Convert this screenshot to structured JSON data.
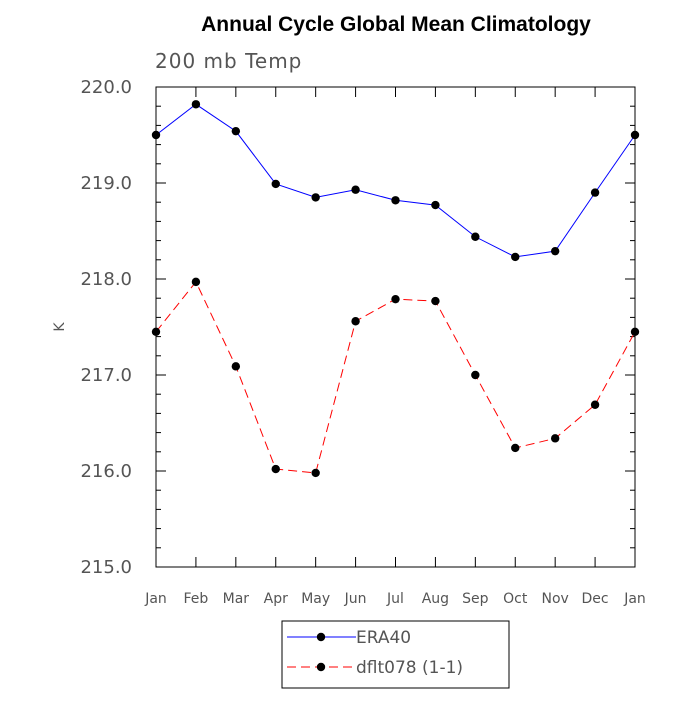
{
  "chart_data": {
    "type": "line",
    "title": "Annual Cycle Global Mean Climatology",
    "subtitle": "200 mb Temp",
    "xlabel": "",
    "ylabel": "K",
    "categories": [
      "Jan",
      "Feb",
      "Mar",
      "Apr",
      "May",
      "Jun",
      "Jul",
      "Aug",
      "Sep",
      "Oct",
      "Nov",
      "Dec",
      "Jan"
    ],
    "ylim": [
      215.0,
      220.0
    ],
    "yticks": [
      "215.0",
      "216.0",
      "217.0",
      "218.0",
      "219.0",
      "220.0"
    ],
    "grid": false,
    "legend_position": "bottom",
    "series": [
      {
        "name": "ERA40",
        "color": "#0000ff",
        "style": "solid",
        "values": [
          219.5,
          219.82,
          219.54,
          218.99,
          218.85,
          218.93,
          218.82,
          218.77,
          218.44,
          218.23,
          218.29,
          218.9,
          219.5
        ]
      },
      {
        "name": "dflt078 (1-1)",
        "color": "#ff0000",
        "style": "dashed",
        "values": [
          217.45,
          217.97,
          217.09,
          216.02,
          215.98,
          217.56,
          217.79,
          217.77,
          217.0,
          216.24,
          216.34,
          216.69,
          217.45
        ]
      }
    ]
  }
}
